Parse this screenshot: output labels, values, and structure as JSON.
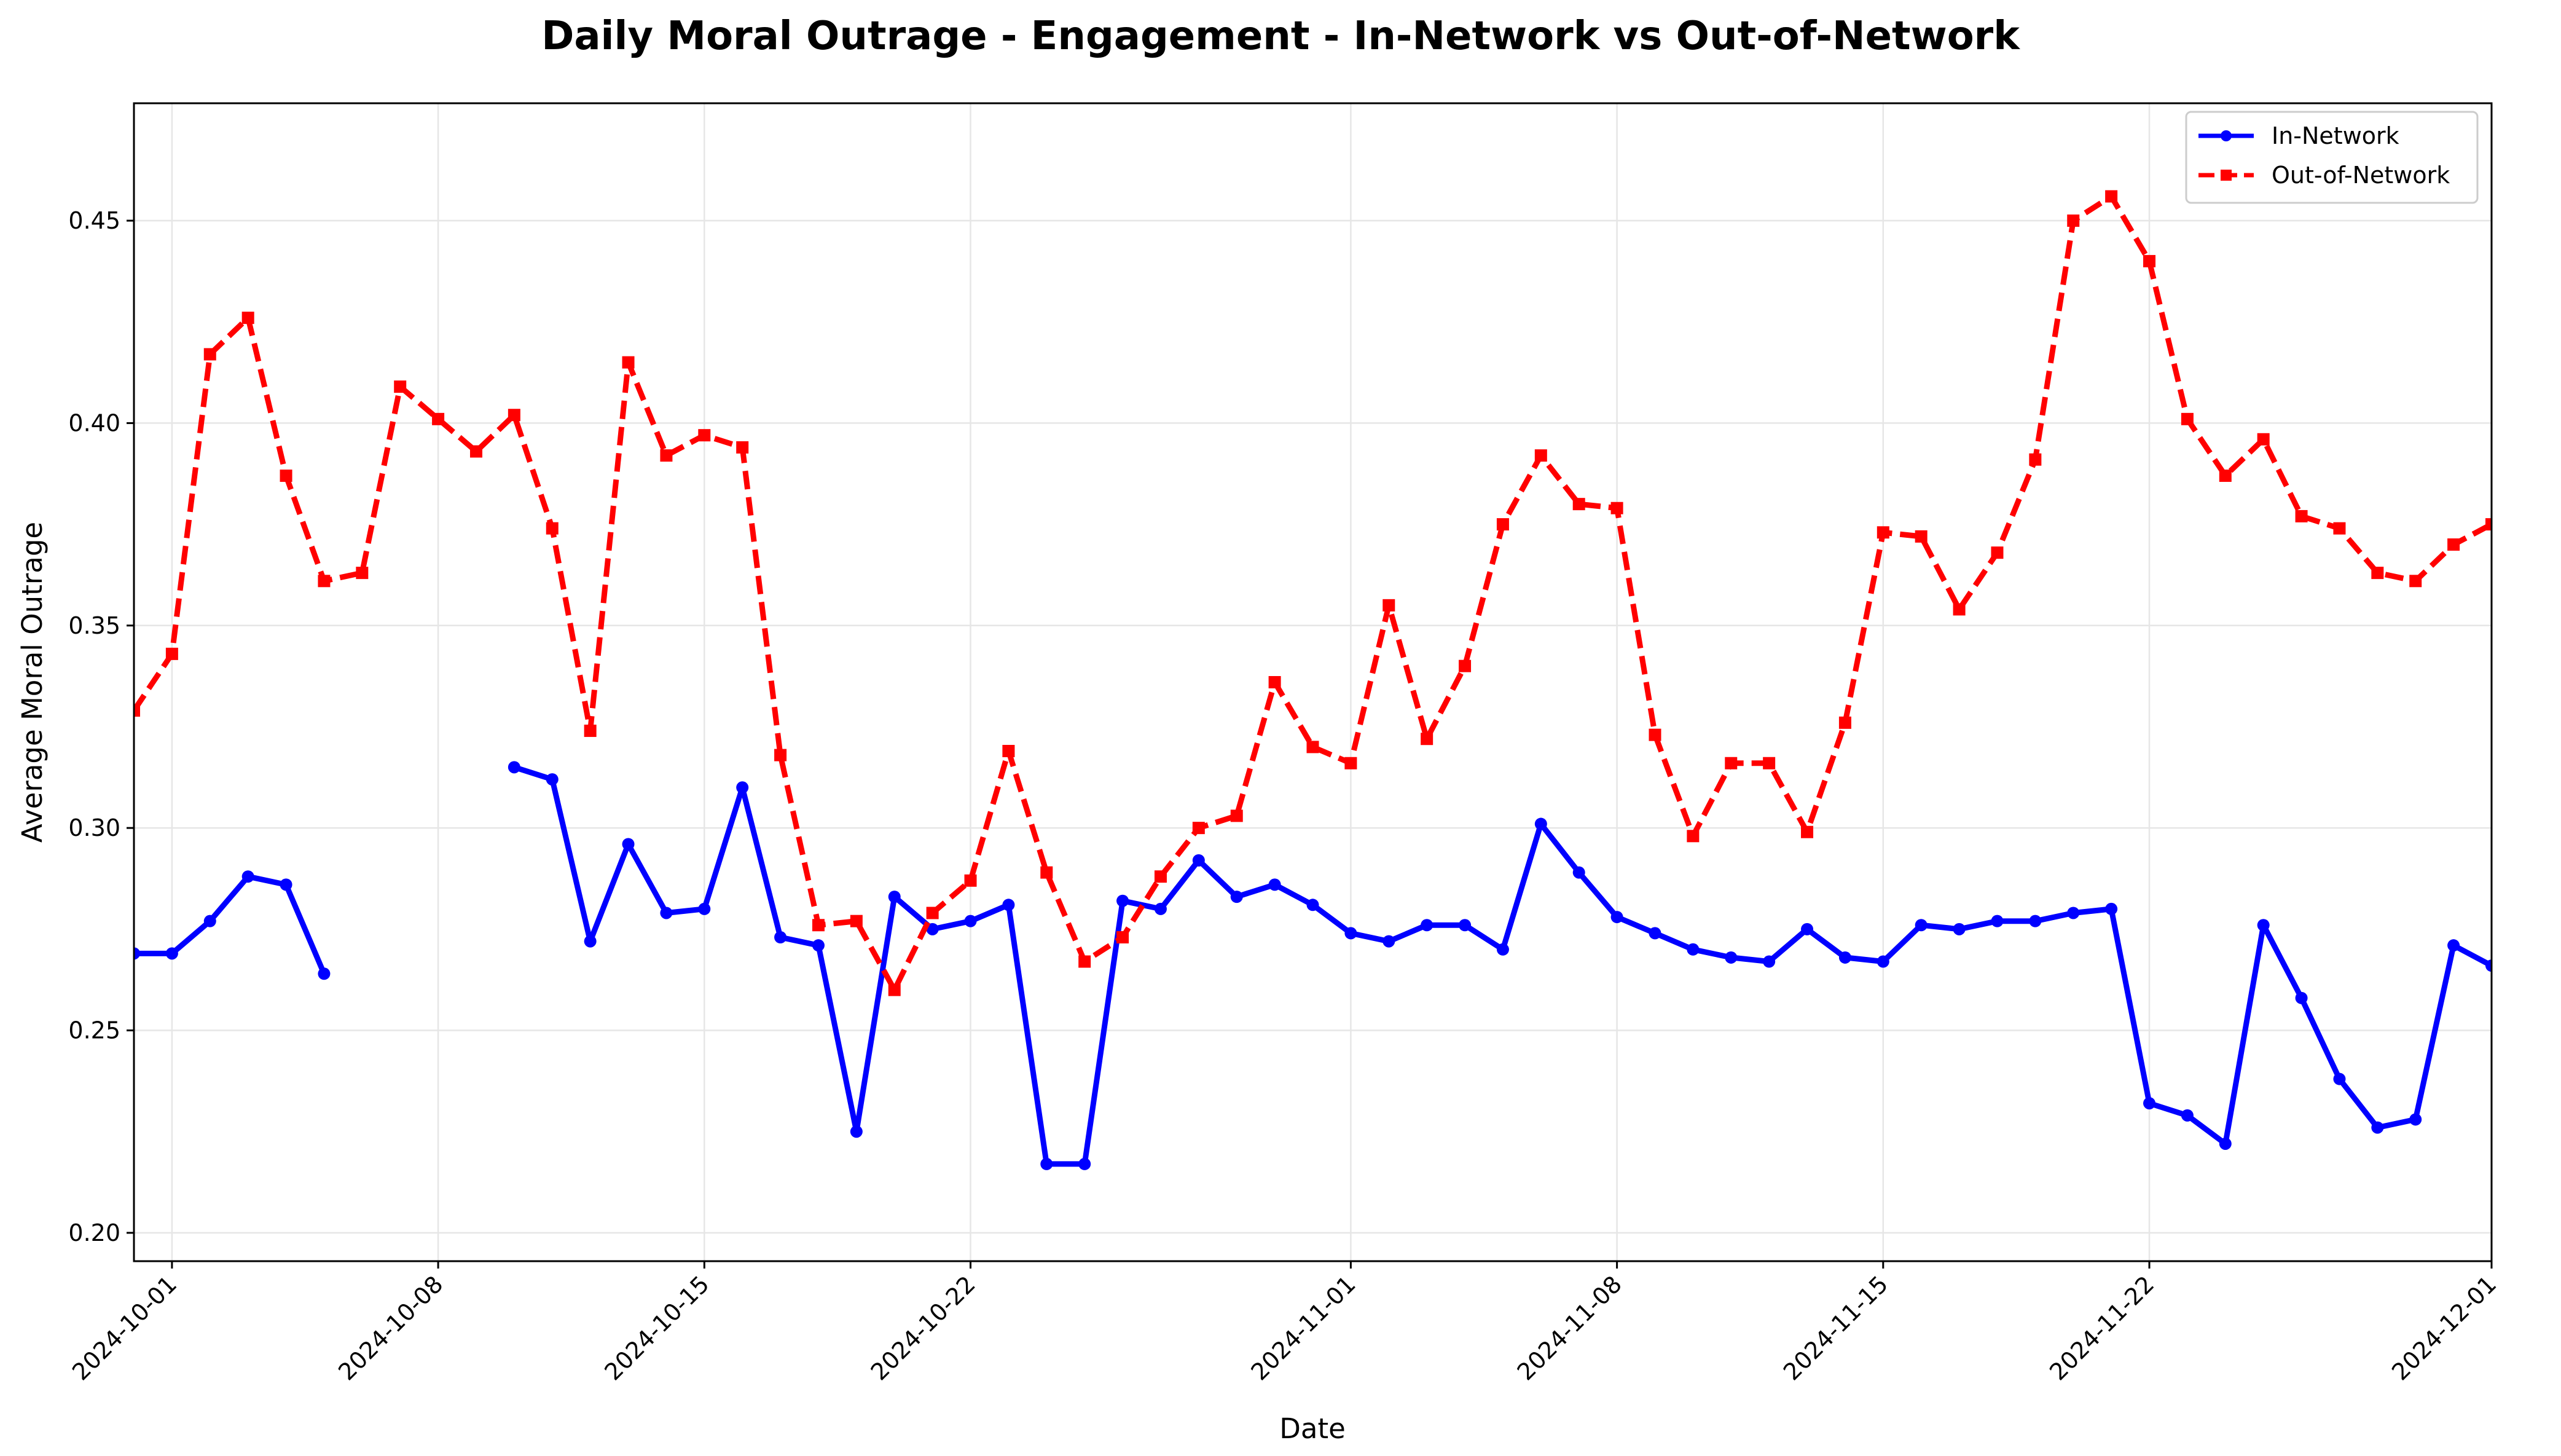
{
  "chart_data": {
    "type": "line",
    "title": "Daily Moral Outrage - Engagement - In-Network vs Out-of-Network",
    "xlabel": "Date",
    "ylabel": "Average Moral Outrage",
    "x_start": "2024-09-30",
    "x_end": "2024-12-01",
    "ylim": [
      0.193,
      0.479
    ],
    "x_ticks": [
      "2024-10-01",
      "2024-10-08",
      "2024-10-15",
      "2024-10-22",
      "2024-11-01",
      "2024-11-08",
      "2024-11-15",
      "2024-11-22",
      "2024-12-01"
    ],
    "y_ticks": [
      "0.20",
      "0.25",
      "0.30",
      "0.35",
      "0.40",
      "0.45"
    ],
    "y_tick_values": [
      0.2,
      0.25,
      0.3,
      0.35,
      0.4,
      0.45
    ],
    "grid": true,
    "legend_position": "upper right",
    "dates": [
      "2024-09-30",
      "2024-10-01",
      "2024-10-02",
      "2024-10-03",
      "2024-10-04",
      "2024-10-05",
      "2024-10-06",
      "2024-10-07",
      "2024-10-08",
      "2024-10-09",
      "2024-10-10",
      "2024-10-11",
      "2024-10-12",
      "2024-10-13",
      "2024-10-14",
      "2024-10-15",
      "2024-10-16",
      "2024-10-17",
      "2024-10-18",
      "2024-10-19",
      "2024-10-20",
      "2024-10-21",
      "2024-10-22",
      "2024-10-23",
      "2024-10-24",
      "2024-10-25",
      "2024-10-26",
      "2024-10-27",
      "2024-10-28",
      "2024-10-29",
      "2024-10-30",
      "2024-10-31",
      "2024-11-01",
      "2024-11-02",
      "2024-11-03",
      "2024-11-04",
      "2024-11-05",
      "2024-11-06",
      "2024-11-07",
      "2024-11-08",
      "2024-11-09",
      "2024-11-10",
      "2024-11-11",
      "2024-11-12",
      "2024-11-13",
      "2024-11-14",
      "2024-11-15",
      "2024-11-16",
      "2024-11-17",
      "2024-11-18",
      "2024-11-19",
      "2024-11-20",
      "2024-11-21",
      "2024-11-22",
      "2024-11-23",
      "2024-11-24",
      "2024-11-25",
      "2024-11-26",
      "2024-11-27",
      "2024-11-28",
      "2024-11-29",
      "2024-11-30",
      "2024-12-01"
    ],
    "series": [
      {
        "name": "In-Network",
        "color": "#0000ff",
        "style": "solid",
        "marker": "circle",
        "values": [
          0.269,
          0.269,
          0.277,
          0.288,
          0.286,
          0.264,
          null,
          null,
          null,
          null,
          0.315,
          0.312,
          0.272,
          0.296,
          0.279,
          0.28,
          0.31,
          0.273,
          0.271,
          0.225,
          0.283,
          0.275,
          0.277,
          0.281,
          0.217,
          0.217,
          0.282,
          0.28,
          0.292,
          0.283,
          0.286,
          0.281,
          0.274,
          0.272,
          0.276,
          0.276,
          0.27,
          0.301,
          0.289,
          0.278,
          0.274,
          0.27,
          0.268,
          0.267,
          0.275,
          0.268,
          0.267,
          0.276,
          0.275,
          0.277,
          0.277,
          0.279,
          0.28,
          0.232,
          0.229,
          0.222,
          0.276,
          0.258,
          0.238,
          0.226,
          0.228,
          0.271,
          0.266
        ]
      },
      {
        "name": "Out-of-Network",
        "color": "#ff0000",
        "style": "dashed",
        "marker": "square",
        "values": [
          0.329,
          0.343,
          0.417,
          0.426,
          0.387,
          0.361,
          0.363,
          0.409,
          0.401,
          0.393,
          0.402,
          0.374,
          0.324,
          0.415,
          0.392,
          0.397,
          0.394,
          0.318,
          0.276,
          0.277,
          0.26,
          0.279,
          0.287,
          0.319,
          0.289,
          0.267,
          0.273,
          0.288,
          0.3,
          0.303,
          0.336,
          0.32,
          0.316,
          0.355,
          0.322,
          0.34,
          0.375,
          0.392,
          0.38,
          0.379,
          0.323,
          0.298,
          0.316,
          0.316,
          0.299,
          0.326,
          0.373,
          0.372,
          0.354,
          0.368,
          0.391,
          0.45,
          0.456,
          0.44,
          0.401,
          0.387,
          0.396,
          0.377,
          0.374,
          0.363,
          0.361,
          0.37,
          0.375
        ]
      }
    ]
  }
}
